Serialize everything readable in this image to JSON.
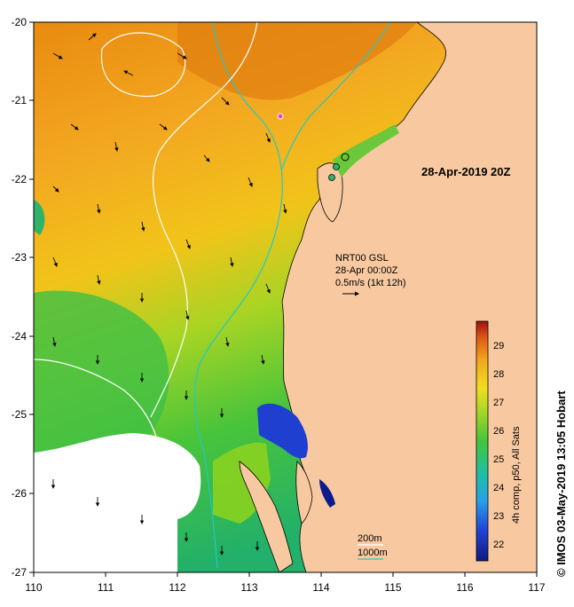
{
  "map": {
    "date_label": "28-Apr-2019 20Z",
    "model_label_1": "NRT00 GSL",
    "model_label_2": "28-Apr 00:00Z",
    "model_label_3": "0.5m/s (1kt 12h)",
    "contour_label_1": "200m",
    "contour_label_2": "1000m",
    "colorbar_title": "4h comp, p50, All Sats",
    "credit": "© IMOS 03-May-2019 13:05 Hobart",
    "x_ticks": [
      "110",
      "111",
      "112",
      "113",
      "114",
      "115",
      "116",
      "117"
    ],
    "y_ticks": [
      "-20",
      "-21",
      "-22",
      "-23",
      "-24",
      "-25",
      "-26",
      "-27"
    ],
    "colorbar_ticks": [
      "22",
      "23",
      "24",
      "25",
      "26",
      "27",
      "28",
      "29"
    ],
    "colors": {
      "land": "#f8c9a0",
      "warm": "#f0a020",
      "mid": "#f5c416",
      "green": "#7ed321",
      "cool": "#2fb36a",
      "cold": "#1e3fd0",
      "contour_200": "#22c8c8",
      "contour_1000": "#ffffff",
      "marker_pink": "#ff33cc"
    }
  }
}
